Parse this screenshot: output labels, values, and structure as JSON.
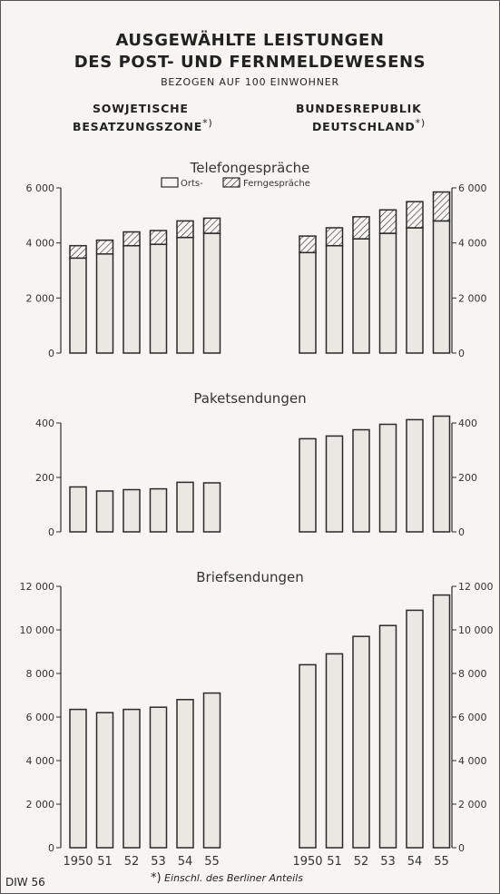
{
  "header": {
    "title_line1": "AUSGEWÄHLTE LEISTUNGEN",
    "title_line2": "DES POST- UND FERNMELDEWESENS",
    "subtitle": "BEZOGEN AUF 100 EINWOHNER",
    "left_region_line1": "SOWJETISCHE",
    "left_region_line2": "BESATZUNGSZONE",
    "left_region_mark": "*)",
    "right_region_line1": "BUNDESREPUBLIK",
    "right_region_line2": "DEUTSCHLAND",
    "right_region_mark": "*)"
  },
  "footer": {
    "source": "DIW 56",
    "note_mark": "*)",
    "note_text": "Einschl. des Berliner Anteils"
  },
  "colors": {
    "bar_fill": "#e9e8e2",
    "stroke": "#2a2a2a",
    "hatch": "#333333"
  },
  "chart_data": [
    {
      "type": "bar",
      "stacked": true,
      "title": "Telefongespräche",
      "panel": "Sowjetische Besatzungszone",
      "categories": [
        "1950",
        "51",
        "52",
        "53",
        "54",
        "55"
      ],
      "series": [
        {
          "name": "Orts-",
          "values": [
            3450,
            3600,
            3900,
            3950,
            4200,
            4350
          ]
        },
        {
          "name": "Ferngespräche",
          "values": [
            450,
            500,
            500,
            500,
            600,
            550
          ]
        }
      ],
      "ylim": [
        0,
        6000
      ],
      "yticks": [
        "0",
        "2 000",
        "4 000",
        "6 000"
      ],
      "legend": "top-center",
      "grid": false
    },
    {
      "type": "bar",
      "stacked": true,
      "title": "Telefongespräche",
      "panel": "Bundesrepublik Deutschland",
      "categories": [
        "1950",
        "51",
        "52",
        "53",
        "54",
        "55"
      ],
      "series": [
        {
          "name": "Orts-",
          "values": [
            3650,
            3900,
            4150,
            4350,
            4550,
            4800
          ]
        },
        {
          "name": "Ferngespräche",
          "values": [
            600,
            650,
            800,
            850,
            950,
            1050
          ]
        }
      ],
      "ylim": [
        0,
        6000
      ],
      "yticks": [
        "0",
        "2 000",
        "4 000",
        "6 000"
      ],
      "grid": false
    },
    {
      "type": "bar",
      "title": "Paketsendungen",
      "panel": "Sowjetische Besatzungszone",
      "categories": [
        "1950",
        "51",
        "52",
        "53",
        "54",
        "55"
      ],
      "values": [
        165,
        150,
        155,
        158,
        182,
        180
      ],
      "ylim": [
        0,
        400
      ],
      "yticks": [
        "0",
        "200",
        "400"
      ],
      "grid": false
    },
    {
      "type": "bar",
      "title": "Paketsendungen",
      "panel": "Bundesrepublik Deutschland",
      "categories": [
        "1950",
        "51",
        "52",
        "53",
        "54",
        "55"
      ],
      "values": [
        342,
        352,
        375,
        395,
        412,
        425
      ],
      "ylim": [
        0,
        400
      ],
      "yticks": [
        "0",
        "200",
        "400"
      ],
      "grid": false
    },
    {
      "type": "bar",
      "title": "Briefsendungen",
      "panel": "Sowjetische Besatzungszone",
      "categories": [
        "1950",
        "51",
        "52",
        "53",
        "54",
        "55"
      ],
      "values": [
        6350,
        6200,
        6350,
        6450,
        6800,
        7100
      ],
      "ylim": [
        0,
        12000
      ],
      "yticks": [
        "0",
        "2 000",
        "4 000",
        "6 000",
        "8 000",
        "10 000",
        "12 000"
      ],
      "grid": false
    },
    {
      "type": "bar",
      "title": "Briefsendungen",
      "panel": "Bundesrepublik Deutschland",
      "categories": [
        "1950",
        "51",
        "52",
        "53",
        "54",
        "55"
      ],
      "values": [
        8400,
        8900,
        9700,
        10200,
        10900,
        11600
      ],
      "ylim": [
        0,
        12000
      ],
      "yticks": [
        "0",
        "2 000",
        "4 000",
        "6 000",
        "8 000",
        "10 000",
        "12 000"
      ],
      "grid": false
    }
  ]
}
